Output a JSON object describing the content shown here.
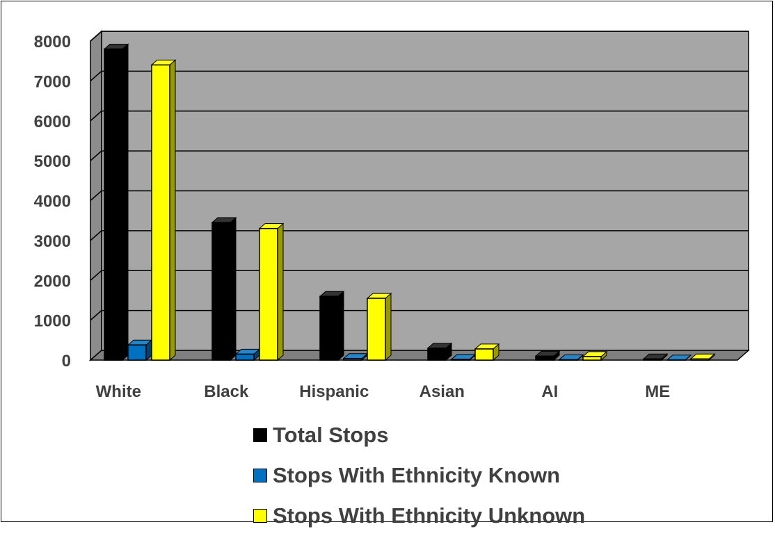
{
  "chart_data": {
    "type": "bar",
    "title": "",
    "xlabel": "",
    "ylabel": "",
    "categories": [
      "White",
      "Black",
      "Hispanic",
      "Asian",
      "AI",
      "ME"
    ],
    "series": [
      {
        "name": "Total Stops",
        "color": "#000000",
        "values": [
          7800,
          3450,
          1600,
          300,
          100,
          30
        ]
      },
      {
        "name": "Stops With Ethnicity Known",
        "color": "#0070c0",
        "values": [
          380,
          150,
          40,
          20,
          10,
          5
        ]
      },
      {
        "name": "Stops With Ethnicity Unknown",
        "color": "#ffff00",
        "values": [
          7400,
          3300,
          1550,
          280,
          90,
          30
        ]
      }
    ],
    "ylim": [
      0,
      8000
    ],
    "yticks": [
      0,
      1000,
      2000,
      3000,
      4000,
      5000,
      6000,
      7000,
      8000
    ],
    "grid": true,
    "legend": "bottom",
    "plot_background": "#a6a6a6",
    "style": "3d-clustered-column"
  }
}
